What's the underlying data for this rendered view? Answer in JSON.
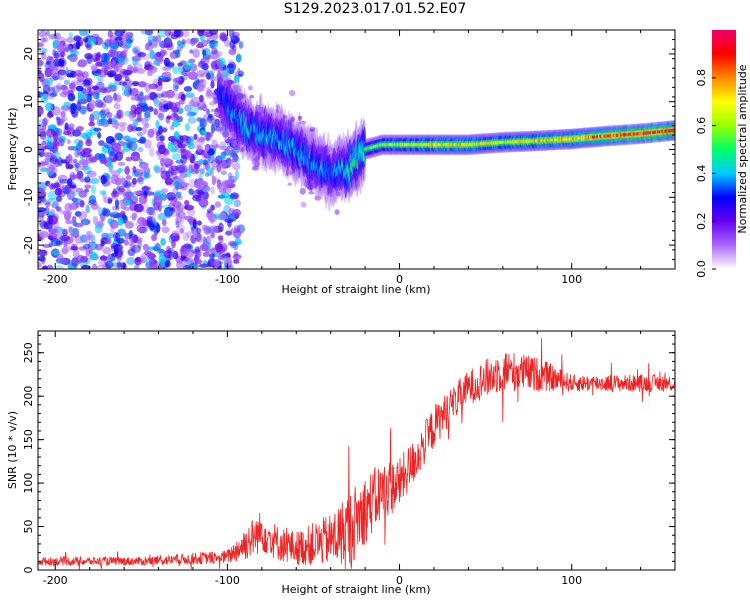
{
  "title": "S129.2023.017.01.52.E07",
  "colors": {
    "snr_line": "#ee2222",
    "frame": "#000000",
    "blob_purple": "#7733dd"
  },
  "colorbar": {
    "label": "Normalized spectral amplitude",
    "ticks": [
      "0.0",
      "0.2",
      "0.4",
      "0.6",
      "0.8"
    ],
    "range": [
      0,
      1
    ],
    "stops": [
      "#ffffff",
      "#aa66ff",
      "#6600ee",
      "#0000ff",
      "#00ccff",
      "#00ff66",
      "#99ff00",
      "#ffff00",
      "#ff8800",
      "#ff0000",
      "#ee0066"
    ]
  },
  "chart_data": [
    {
      "type": "heatmap",
      "name": "spectrogram",
      "xlabel": "Height of straight line (km)",
      "ylabel": "Frequency (Hz)",
      "xlim": [
        -210,
        160
      ],
      "ylim": [
        -25,
        25
      ],
      "xticks": [
        -200,
        -100,
        0,
        100
      ],
      "yticks": [
        -20,
        -10,
        0,
        10,
        20
      ],
      "xtick_labels": [
        "-200",
        "-100",
        "0",
        "100"
      ],
      "ytick_labels": [
        "-20",
        "-10",
        "0",
        "10",
        "20"
      ],
      "noise_region": {
        "x": [
          -210,
          -100
        ],
        "frequency": [
          -25,
          25
        ],
        "amplitude": 0.25
      },
      "signal_ridge": {
        "x": [
          -105,
          -100,
          -90,
          -80,
          -70,
          -60,
          -50,
          -40,
          -30,
          -20,
          -10,
          0,
          20,
          40,
          60,
          80,
          100,
          120,
          140,
          160
        ],
        "frequency": [
          12,
          9,
          5,
          3,
          2,
          0,
          -3,
          -5,
          -4,
          0,
          1,
          1,
          1,
          1,
          1.5,
          1.8,
          2.2,
          2.8,
          3.3,
          4
        ],
        "amplitude": [
          0.3,
          0.35,
          0.4,
          0.4,
          0.4,
          0.4,
          0.4,
          0.35,
          0.45,
          0.5,
          0.6,
          0.6,
          0.7,
          0.7,
          0.65,
          0.7,
          0.75,
          0.85,
          0.9,
          0.9
        ]
      }
    },
    {
      "type": "line",
      "name": "snr",
      "xlabel": "Height of straight line (km)",
      "ylabel": "SNR (10 * v/v)",
      "xlim": [
        -210,
        160
      ],
      "ylim": [
        0,
        275
      ],
      "xticks": [
        -200,
        -100,
        0,
        100
      ],
      "yticks": [
        0,
        50,
        100,
        150,
        200,
        250
      ],
      "xtick_labels": [
        "-200",
        "-100",
        "0",
        "100"
      ],
      "ytick_labels": [
        "0",
        "50",
        "100",
        "150",
        "200",
        "250"
      ],
      "envelope": {
        "x": [
          -210,
          -150,
          -100,
          -90,
          -80,
          -70,
          -60,
          -50,
          -40,
          -30,
          -20,
          -10,
          0,
          10,
          20,
          30,
          40,
          60,
          80,
          100,
          120,
          140,
          160
        ],
        "y": [
          10,
          10,
          15,
          30,
          45,
          30,
          25,
          30,
          35,
          45,
          70,
          90,
          100,
          130,
          165,
          190,
          210,
          230,
          225,
          215,
          215,
          215,
          215
        ],
        "noise": [
          5,
          5,
          8,
          20,
          25,
          20,
          20,
          25,
          30,
          45,
          40,
          35,
          30,
          25,
          25,
          20,
          20,
          25,
          20,
          10,
          10,
          10,
          10
        ]
      }
    }
  ]
}
